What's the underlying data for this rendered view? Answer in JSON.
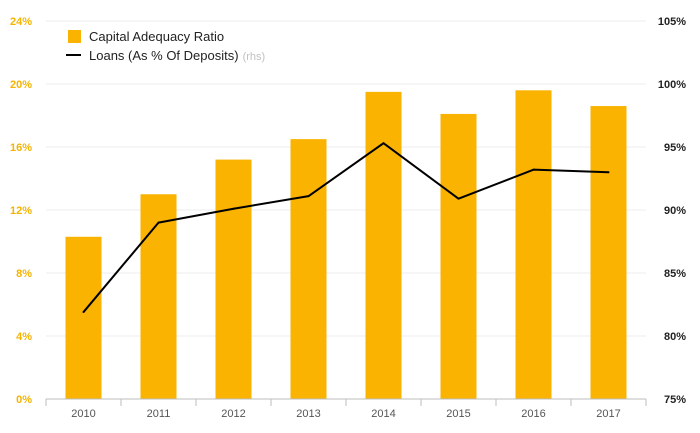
{
  "chart_data": {
    "type": "bar",
    "categories": [
      "2010",
      "2011",
      "2012",
      "2013",
      "2014",
      "2015",
      "2016",
      "2017"
    ],
    "series": [
      {
        "name": "Capital Adequacy Ratio",
        "kind": "bar",
        "axis": "left",
        "color": "#f9b300",
        "values": [
          10.3,
          13.0,
          15.2,
          16.5,
          19.5,
          18.1,
          19.6,
          18.6
        ]
      },
      {
        "name": "Loans (As % Of Deposits)",
        "name_suffix": "(rhs)",
        "kind": "line",
        "axis": "right",
        "color": "#000000",
        "values": [
          81.9,
          89.0,
          90.1,
          91.1,
          95.3,
          90.9,
          93.2,
          93.0
        ]
      }
    ],
    "y_left": {
      "ylim": [
        0,
        24
      ],
      "ticks": [
        0,
        4,
        8,
        12,
        16,
        20,
        24
      ],
      "tick_labels": [
        "0%",
        "4%",
        "8%",
        "12%",
        "16%",
        "20%",
        "24%"
      ],
      "color": "#f5b400"
    },
    "y_right": {
      "ylim": [
        75,
        105
      ],
      "ticks": [
        75,
        80,
        85,
        90,
        95,
        100,
        105
      ],
      "tick_labels": [
        "75%",
        "80%",
        "85%",
        "90%",
        "95%",
        "100%",
        "105%"
      ],
      "color": "#222222"
    },
    "title": "",
    "xlabel": "",
    "ylabel": "",
    "grid": true,
    "legend_position": "top-left"
  }
}
